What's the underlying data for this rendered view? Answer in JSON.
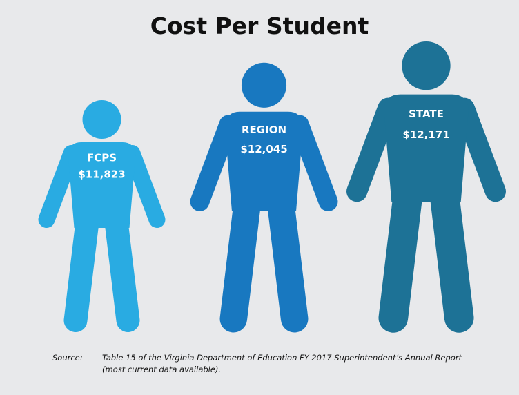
{
  "chart_data": {
    "type": "pictogram",
    "title": "Cost Per Student",
    "categories": [
      "FCPS",
      "REGION",
      "STATE"
    ],
    "values": [
      11823,
      12045,
      12171
    ],
    "value_labels": [
      "$11,823",
      "$12,045",
      "$12,171"
    ],
    "colors": [
      "#29abe2",
      "#1878c0",
      "#1d7296"
    ],
    "source": {
      "label": "Source:",
      "text": "Table 15 of the Virginia Department of Education FY 2017 Superintendent’s Annual Report (most current data available)."
    }
  }
}
